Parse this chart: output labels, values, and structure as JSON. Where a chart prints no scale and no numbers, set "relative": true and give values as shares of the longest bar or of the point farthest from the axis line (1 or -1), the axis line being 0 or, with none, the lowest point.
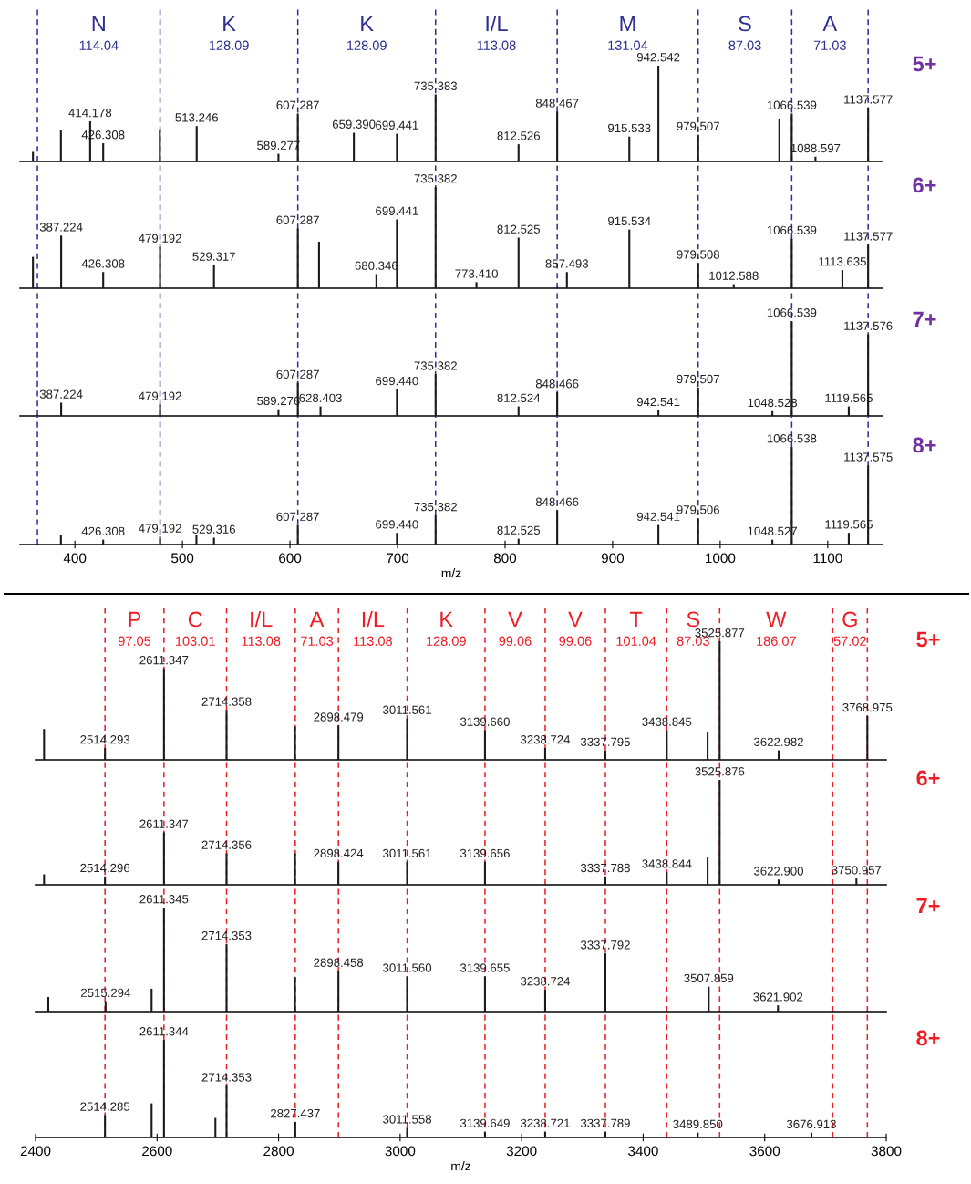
{
  "chart_data": [
    {
      "type": "bar",
      "relative": true,
      "color": "#1a1a1a",
      "xlim": [
        349,
        1151
      ],
      "xticks": [
        400,
        500,
        600,
        700,
        800,
        900,
        1000,
        1100
      ],
      "tick_labels": false,
      "x": [
        361,
        387,
        414.178,
        426.308,
        479,
        513.246,
        589.277,
        607.287,
        659.39,
        699.441,
        735.383,
        812.526,
        848.467,
        915.533,
        942.542,
        979.507,
        1055,
        1066.539,
        1088.597,
        1137.577
      ],
      "values": [
        0.1,
        0.33,
        0.42,
        0.19,
        0.33,
        0.37,
        0.08,
        0.5,
        0.3,
        0.29,
        0.7,
        0.18,
        0.52,
        0.26,
        1.0,
        0.28,
        0.44,
        0.5,
        0.05,
        0.56
      ],
      "annotations": [
        "5+",
        "N\n114.04",
        "K\n128.09",
        "K\n128.09",
        "I/L\n113.08",
        "M\n131.04",
        "S\n87.03",
        "A\n71.03",
        {
          "text": "414.178",
          "x": 414.178,
          "y": 0.42
        },
        {
          "text": "426.308",
          "x": 426.308,
          "y": 0.19
        },
        {
          "text": "513.246",
          "x": 513.246,
          "y": 0.37
        },
        {
          "text": "589.277",
          "x": 589.277,
          "y": 0.08
        },
        {
          "text": "607.287",
          "x": 607.287,
          "y": 0.5
        },
        {
          "text": "659.390",
          "x": 659.39,
          "y": 0.3
        },
        {
          "text": "699.441",
          "x": 699.441,
          "y": 0.29
        },
        {
          "text": "735.383",
          "x": 735.383,
          "y": 0.7
        },
        {
          "text": "812.526",
          "x": 812.526,
          "y": 0.18
        },
        {
          "text": "848.467",
          "x": 848.467,
          "y": 0.52
        },
        {
          "text": "915.533",
          "x": 915.533,
          "y": 0.26
        },
        {
          "text": "942.542",
          "x": 942.542,
          "y": 1.0
        },
        {
          "text": "979.507",
          "x": 979.507,
          "y": 0.28
        },
        {
          "text": "1066.539",
          "x": 1066.539,
          "y": 0.5
        },
        {
          "text": "1088.597",
          "x": 1088.597,
          "y": 0.05
        },
        {
          "text": "1137.577",
          "x": 1137.577,
          "y": 0.56
        }
      ],
      "ref_lines": [
        {
          "axis": "x",
          "value": 365.15,
          "color": "#2e3192",
          "line_style": "dashed"
        },
        {
          "axis": "x",
          "value": 479.19,
          "color": "#2e3192",
          "line_style": "dashed"
        },
        {
          "axis": "x",
          "value": 607.29,
          "color": "#2e3192",
          "line_style": "dashed"
        },
        {
          "axis": "x",
          "value": 735.38,
          "color": "#2e3192",
          "line_style": "dashed"
        },
        {
          "axis": "x",
          "value": 848.47,
          "color": "#2e3192",
          "line_style": "dashed"
        },
        {
          "axis": "x",
          "value": 979.51,
          "color": "#2e3192",
          "line_style": "dashed"
        },
        {
          "axis": "x",
          "value": 1066.54,
          "color": "#2e3192",
          "line_style": "dashed"
        },
        {
          "axis": "x",
          "value": 1137.58,
          "color": "#2e3192",
          "line_style": "dashed"
        }
      ]
    },
    {
      "type": "bar",
      "relative": true,
      "color": "#1a1a1a",
      "xlim": [
        349,
        1151
      ],
      "xticks": [
        400,
        500,
        600,
        700,
        800,
        900,
        1000,
        1100
      ],
      "tick_labels": false,
      "x": [
        361,
        387.224,
        426.308,
        479.192,
        529.317,
        607.287,
        627,
        680.346,
        699.441,
        735.382,
        773.41,
        812.525,
        857.493,
        915.534,
        979.508,
        1012.588,
        1066.539,
        1113.635,
        1137.577
      ],
      "values": [
        0.31,
        0.52,
        0.16,
        0.41,
        0.23,
        0.59,
        0.46,
        0.14,
        0.68,
        1.0,
        0.06,
        0.5,
        0.16,
        0.58,
        0.25,
        0.04,
        0.49,
        0.18,
        0.43
      ],
      "annotations": [
        "6+",
        {
          "text": "387.224",
          "x": 387.224,
          "y": 0.52
        },
        {
          "text": "426.308",
          "x": 426.308,
          "y": 0.16
        },
        {
          "text": "479.192",
          "x": 479.192,
          "y": 0.41
        },
        {
          "text": "529.317",
          "x": 529.317,
          "y": 0.23
        },
        {
          "text": "607.287",
          "x": 607.287,
          "y": 0.59
        },
        {
          "text": "680.346",
          "x": 680.346,
          "y": 0.14
        },
        {
          "text": "699.441",
          "x": 699.441,
          "y": 0.68
        },
        {
          "text": "735.382",
          "x": 735.382,
          "y": 1.0
        },
        {
          "text": "773.410",
          "x": 773.41,
          "y": 0.06
        },
        {
          "text": "812.525",
          "x": 812.525,
          "y": 0.5
        },
        {
          "text": "857.493",
          "x": 857.493,
          "y": 0.16
        },
        {
          "text": "915.534",
          "x": 915.534,
          "y": 0.58
        },
        {
          "text": "979.508",
          "x": 979.508,
          "y": 0.25
        },
        {
          "text": "1012.588",
          "x": 1012.588,
          "y": 0.04
        },
        {
          "text": "1066.539",
          "x": 1066.539,
          "y": 0.49
        },
        {
          "text": "1113.635",
          "x": 1113.635,
          "y": 0.18
        },
        {
          "text": "1137.577",
          "x": 1137.577,
          "y": 0.43
        }
      ],
      "ref_lines": [
        {
          "axis": "x",
          "value": 365.15,
          "color": "#2e3192",
          "line_style": "dashed"
        },
        {
          "axis": "x",
          "value": 479.19,
          "color": "#2e3192",
          "line_style": "dashed"
        },
        {
          "axis": "x",
          "value": 607.29,
          "color": "#2e3192",
          "line_style": "dashed"
        },
        {
          "axis": "x",
          "value": 735.38,
          "color": "#2e3192",
          "line_style": "dashed"
        },
        {
          "axis": "x",
          "value": 848.47,
          "color": "#2e3192",
          "line_style": "dashed"
        },
        {
          "axis": "x",
          "value": 979.51,
          "color": "#2e3192",
          "line_style": "dashed"
        },
        {
          "axis": "x",
          "value": 1066.54,
          "color": "#2e3192",
          "line_style": "dashed"
        },
        {
          "axis": "x",
          "value": 1137.58,
          "color": "#2e3192",
          "line_style": "dashed"
        }
      ]
    },
    {
      "type": "bar",
      "relative": true,
      "color": "#1a1a1a",
      "xlim": [
        349,
        1151
      ],
      "xticks": [
        400,
        500,
        600,
        700,
        800,
        900,
        1000,
        1100
      ],
      "tick_labels": false,
      "x": [
        387.224,
        479.192,
        589.276,
        607.287,
        628.403,
        699.44,
        735.382,
        812.524,
        848.466,
        942.541,
        979.507,
        1048.528,
        1066.539,
        1119.565,
        1137.576
      ],
      "values": [
        0.14,
        0.12,
        0.07,
        0.35,
        0.1,
        0.28,
        0.44,
        0.1,
        0.25,
        0.06,
        0.3,
        0.05,
        1.0,
        0.1,
        0.86
      ],
      "annotations": [
        "7+",
        {
          "text": "387.224",
          "x": 387.224,
          "y": 0.14
        },
        {
          "text": "479.192",
          "x": 479.192,
          "y": 0.12
        },
        {
          "text": "589.276",
          "x": 589.276,
          "y": 0.07
        },
        {
          "text": "607.287",
          "x": 607.287,
          "y": 0.35
        },
        {
          "text": "628.403",
          "x": 628.403,
          "y": 0.1
        },
        {
          "text": "699.440",
          "x": 699.44,
          "y": 0.28
        },
        {
          "text": "735.382",
          "x": 735.382,
          "y": 0.44
        },
        {
          "text": "812.524",
          "x": 812.524,
          "y": 0.1
        },
        {
          "text": "848.466",
          "x": 848.466,
          "y": 0.25
        },
        {
          "text": "942.541",
          "x": 942.541,
          "y": 0.06
        },
        {
          "text": "979.507",
          "x": 979.507,
          "y": 0.3
        },
        {
          "text": "1048.528",
          "x": 1048.528,
          "y": 0.05
        },
        {
          "text": "1066.539",
          "x": 1066.539,
          "y": 1.0
        },
        {
          "text": "1119.565",
          "x": 1119.565,
          "y": 0.1
        },
        {
          "text": "1137.576",
          "x": 1137.576,
          "y": 0.86
        }
      ],
      "ref_lines": [
        {
          "axis": "x",
          "value": 365.15,
          "color": "#2e3192",
          "line_style": "dashed"
        },
        {
          "axis": "x",
          "value": 479.19,
          "color": "#2e3192",
          "line_style": "dashed"
        },
        {
          "axis": "x",
          "value": 607.29,
          "color": "#2e3192",
          "line_style": "dashed"
        },
        {
          "axis": "x",
          "value": 735.38,
          "color": "#2e3192",
          "line_style": "dashed"
        },
        {
          "axis": "x",
          "value": 848.47,
          "color": "#2e3192",
          "line_style": "dashed"
        },
        {
          "axis": "x",
          "value": 979.51,
          "color": "#2e3192",
          "line_style": "dashed"
        },
        {
          "axis": "x",
          "value": 1066.54,
          "color": "#2e3192",
          "line_style": "dashed"
        },
        {
          "axis": "x",
          "value": 1137.58,
          "color": "#2e3192",
          "line_style": "dashed"
        }
      ]
    },
    {
      "type": "bar",
      "relative": true,
      "color": "#1a1a1a",
      "xlim": [
        349,
        1151
      ],
      "xticks": [
        400,
        500,
        600,
        700,
        800,
        900,
        1000,
        1100
      ],
      "tick_labels": "x",
      "xlabel": "m/z",
      "x": [
        387,
        426.308,
        479.192,
        513,
        529.316,
        607.287,
        699.44,
        735.382,
        812.525,
        848.466,
        942.541,
        979.506,
        1048.527,
        1066.538,
        1119.565,
        1137.575
      ],
      "values": [
        0.1,
        0.05,
        0.08,
        0.1,
        0.07,
        0.2,
        0.12,
        0.3,
        0.06,
        0.35,
        0.2,
        0.27,
        0.05,
        1.0,
        0.12,
        0.81
      ],
      "annotations": [
        "8+",
        {
          "text": "426.308",
          "x": 426.308,
          "y": 0.05
        },
        {
          "text": "479.192",
          "x": 479.192,
          "y": 0.08
        },
        {
          "text": "529.316",
          "x": 529.316,
          "y": 0.07
        },
        {
          "text": "607.287",
          "x": 607.287,
          "y": 0.2
        },
        {
          "text": "699.440",
          "x": 699.44,
          "y": 0.12
        },
        {
          "text": "735.382",
          "x": 735.382,
          "y": 0.3
        },
        {
          "text": "812.525",
          "x": 812.525,
          "y": 0.06
        },
        {
          "text": "848.466",
          "x": 848.466,
          "y": 0.35
        },
        {
          "text": "942.541",
          "x": 942.541,
          "y": 0.2
        },
        {
          "text": "979.506",
          "x": 979.506,
          "y": 0.27
        },
        {
          "text": "1048.527",
          "x": 1048.527,
          "y": 0.05
        },
        {
          "text": "1066.538",
          "x": 1066.538,
          "y": 1.0
        },
        {
          "text": "1119.565",
          "x": 1119.565,
          "y": 0.12
        },
        {
          "text": "1137.575",
          "x": 1137.575,
          "y": 0.81
        }
      ],
      "ref_lines": [
        {
          "axis": "x",
          "value": 365.15,
          "color": "#2e3192",
          "line_style": "dashed"
        },
        {
          "axis": "x",
          "value": 479.19,
          "color": "#2e3192",
          "line_style": "dashed"
        },
        {
          "axis": "x",
          "value": 607.29,
          "color": "#2e3192",
          "line_style": "dashed"
        },
        {
          "axis": "x",
          "value": 735.38,
          "color": "#2e3192",
          "line_style": "dashed"
        },
        {
          "axis": "x",
          "value": 848.47,
          "color": "#2e3192",
          "line_style": "dashed"
        },
        {
          "axis": "x",
          "value": 979.51,
          "color": "#2e3192",
          "line_style": "dashed"
        },
        {
          "axis": "x",
          "value": 1066.54,
          "color": "#2e3192",
          "line_style": "dashed"
        },
        {
          "axis": "x",
          "value": 1137.58,
          "color": "#2e3192",
          "line_style": "dashed"
        }
      ]
    },
    {
      "type": "bar",
      "relative": true,
      "color": "#1a1a1a",
      "xlim": [
        2400,
        3800
      ],
      "xticks": [
        2400,
        2600,
        2800,
        3000,
        3200,
        3400,
        3600,
        3800
      ],
      "tick_labels": false,
      "x": [
        2414,
        2514.293,
        2611.347,
        2714.358,
        2827,
        2898.479,
        3011.561,
        3139.66,
        3238.724,
        3337.795,
        3438.845,
        3506,
        3525.877,
        3622.982,
        3768.975
      ],
      "values": [
        0.26,
        0.1,
        0.77,
        0.42,
        0.28,
        0.29,
        0.35,
        0.25,
        0.1,
        0.08,
        0.25,
        0.23,
        1.0,
        0.08,
        0.37
      ],
      "annotations": [
        "5+",
        "P\n97.05",
        "C\n103.01",
        "I/L\n113.08",
        "A\n71.03",
        "I/L\n113.08",
        "K\n128.09",
        "V\n99.06",
        "V\n99.06",
        "T\n101.04",
        "S\n87.03",
        "W\n186.07",
        "G\n57.02",
        {
          "text": "2514.293",
          "x": 2514.293,
          "y": 0.1
        },
        {
          "text": "2611.347",
          "x": 2611.347,
          "y": 0.77
        },
        {
          "text": "2714.358",
          "x": 2714.358,
          "y": 0.42
        },
        {
          "text": "2898.479",
          "x": 2898.479,
          "y": 0.29
        },
        {
          "text": "3011.561",
          "x": 3011.561,
          "y": 0.35
        },
        {
          "text": "3139.660",
          "x": 3139.66,
          "y": 0.25
        },
        {
          "text": "3238.724",
          "x": 3238.724,
          "y": 0.1
        },
        {
          "text": "3337.795",
          "x": 3337.795,
          "y": 0.08
        },
        {
          "text": "3438.845",
          "x": 3438.845,
          "y": 0.25
        },
        {
          "text": "3525.877",
          "x": 3525.877,
          "y": 1.0
        },
        {
          "text": "3622.982",
          "x": 3622.982,
          "y": 0.08
        },
        {
          "text": "3768.975",
          "x": 3768.975,
          "y": 0.37
        }
      ],
      "ref_lines": [
        {
          "axis": "x",
          "value": 2514.29,
          "color": "#ee1c25",
          "line_style": "dashed"
        },
        {
          "axis": "x",
          "value": 2611.35,
          "color": "#ee1c25",
          "line_style": "dashed"
        },
        {
          "axis": "x",
          "value": 2714.36,
          "color": "#ee1c25",
          "line_style": "dashed"
        },
        {
          "axis": "x",
          "value": 2827.44,
          "color": "#ee1c25",
          "line_style": "dashed"
        },
        {
          "axis": "x",
          "value": 2898.48,
          "color": "#ee1c25",
          "line_style": "dashed"
        },
        {
          "axis": "x",
          "value": 3011.56,
          "color": "#ee1c25",
          "line_style": "dashed"
        },
        {
          "axis": "x",
          "value": 3139.66,
          "color": "#ee1c25",
          "line_style": "dashed"
        },
        {
          "axis": "x",
          "value": 3238.72,
          "color": "#ee1c25",
          "line_style": "dashed"
        },
        {
          "axis": "x",
          "value": 3337.79,
          "color": "#ee1c25",
          "line_style": "dashed"
        },
        {
          "axis": "x",
          "value": 3438.84,
          "color": "#ee1c25",
          "line_style": "dashed"
        },
        {
          "axis": "x",
          "value": 3525.88,
          "color": "#ee1c25",
          "line_style": "dashed"
        },
        {
          "axis": "x",
          "value": 3711.95,
          "color": "#ee1c25",
          "line_style": "dashed"
        },
        {
          "axis": "x",
          "value": 3768.97,
          "color": "#ee1c25",
          "line_style": "dashed"
        }
      ]
    },
    {
      "type": "bar",
      "relative": true,
      "color": "#1a1a1a",
      "xlim": [
        2400,
        3800
      ],
      "xticks": [
        2400,
        2600,
        2800,
        3000,
        3200,
        3400,
        3600,
        3800
      ],
      "tick_labels": false,
      "x": [
        2414,
        2514.296,
        2611.347,
        2714.356,
        2827,
        2898.424,
        3011.561,
        3139.656,
        3337.788,
        3438.844,
        3506,
        3525.876,
        3622.9,
        3750.957
      ],
      "values": [
        0.1,
        0.08,
        0.5,
        0.3,
        0.3,
        0.22,
        0.22,
        0.22,
        0.08,
        0.12,
        0.26,
        1.0,
        0.05,
        0.06
      ],
      "annotations": [
        "6+",
        {
          "text": "2514.296",
          "x": 2514.296,
          "y": 0.08
        },
        {
          "text": "2611.347",
          "x": 2611.347,
          "y": 0.5
        },
        {
          "text": "2714.356",
          "x": 2714.356,
          "y": 0.3
        },
        {
          "text": "2898.424",
          "x": 2898.424,
          "y": 0.22
        },
        {
          "text": "3011.561",
          "x": 3011.561,
          "y": 0.22
        },
        {
          "text": "3139.656",
          "x": 3139.656,
          "y": 0.22
        },
        {
          "text": "3337.788",
          "x": 3337.788,
          "y": 0.08
        },
        {
          "text": "3438.844",
          "x": 3438.844,
          "y": 0.12
        },
        {
          "text": "3525.876",
          "x": 3525.876,
          "y": 1.0
        },
        {
          "text": "3622.900",
          "x": 3622.9,
          "y": 0.05
        },
        {
          "text": "3750.957",
          "x": 3750.957,
          "y": 0.06
        }
      ],
      "ref_lines": [
        {
          "axis": "x",
          "value": 2514.29,
          "color": "#ee1c25",
          "line_style": "dashed"
        },
        {
          "axis": "x",
          "value": 2611.35,
          "color": "#ee1c25",
          "line_style": "dashed"
        },
        {
          "axis": "x",
          "value": 2714.36,
          "color": "#ee1c25",
          "line_style": "dashed"
        },
        {
          "axis": "x",
          "value": 2827.44,
          "color": "#ee1c25",
          "line_style": "dashed"
        },
        {
          "axis": "x",
          "value": 2898.48,
          "color": "#ee1c25",
          "line_style": "dashed"
        },
        {
          "axis": "x",
          "value": 3011.56,
          "color": "#ee1c25",
          "line_style": "dashed"
        },
        {
          "axis": "x",
          "value": 3139.66,
          "color": "#ee1c25",
          "line_style": "dashed"
        },
        {
          "axis": "x",
          "value": 3238.72,
          "color": "#ee1c25",
          "line_style": "dashed"
        },
        {
          "axis": "x",
          "value": 3337.79,
          "color": "#ee1c25",
          "line_style": "dashed"
        },
        {
          "axis": "x",
          "value": 3438.84,
          "color": "#ee1c25",
          "line_style": "dashed"
        },
        {
          "axis": "x",
          "value": 3525.88,
          "color": "#ee1c25",
          "line_style": "dashed"
        },
        {
          "axis": "x",
          "value": 3711.95,
          "color": "#ee1c25",
          "line_style": "dashed"
        },
        {
          "axis": "x",
          "value": 3768.97,
          "color": "#ee1c25",
          "line_style": "dashed"
        }
      ]
    },
    {
      "type": "bar",
      "relative": true,
      "color": "#1a1a1a",
      "xlim": [
        2400,
        3800
      ],
      "xticks": [
        2400,
        2600,
        2800,
        3000,
        3200,
        3400,
        3600,
        3800
      ],
      "tick_labels": false,
      "x": [
        2421,
        2515.294,
        2591,
        2611.345,
        2714.353,
        2827,
        2898.458,
        3011.56,
        3139.655,
        3238.724,
        3337.792,
        3507.859,
        3621.902
      ],
      "values": [
        0.14,
        0.1,
        0.22,
        1.0,
        0.65,
        0.33,
        0.39,
        0.34,
        0.34,
        0.21,
        0.56,
        0.24,
        0.06
      ],
      "annotations": [
        "7+",
        {
          "text": "2515.294",
          "x": 2515.294,
          "y": 0.1
        },
        {
          "text": "2611.345",
          "x": 2611.345,
          "y": 1.0
        },
        {
          "text": "2714.353",
          "x": 2714.353,
          "y": 0.65
        },
        {
          "text": "2898.458",
          "x": 2898.458,
          "y": 0.39
        },
        {
          "text": "3011.560",
          "x": 3011.56,
          "y": 0.34
        },
        {
          "text": "3139.655",
          "x": 3139.655,
          "y": 0.34
        },
        {
          "text": "3238.724",
          "x": 3238.724,
          "y": 0.21
        },
        {
          "text": "3337.792",
          "x": 3337.792,
          "y": 0.56
        },
        {
          "text": "3507.859",
          "x": 3507.859,
          "y": 0.24
        },
        {
          "text": "3621.902",
          "x": 3621.902,
          "y": 0.06
        }
      ],
      "ref_lines": [
        {
          "axis": "x",
          "value": 2514.29,
          "color": "#ee1c25",
          "line_style": "dashed"
        },
        {
          "axis": "x",
          "value": 2611.35,
          "color": "#ee1c25",
          "line_style": "dashed"
        },
        {
          "axis": "x",
          "value": 2714.36,
          "color": "#ee1c25",
          "line_style": "dashed"
        },
        {
          "axis": "x",
          "value": 2827.44,
          "color": "#ee1c25",
          "line_style": "dashed"
        },
        {
          "axis": "x",
          "value": 2898.48,
          "color": "#ee1c25",
          "line_style": "dashed"
        },
        {
          "axis": "x",
          "value": 3011.56,
          "color": "#ee1c25",
          "line_style": "dashed"
        },
        {
          "axis": "x",
          "value": 3139.66,
          "color": "#ee1c25",
          "line_style": "dashed"
        },
        {
          "axis": "x",
          "value": 3238.72,
          "color": "#ee1c25",
          "line_style": "dashed"
        },
        {
          "axis": "x",
          "value": 3337.79,
          "color": "#ee1c25",
          "line_style": "dashed"
        },
        {
          "axis": "x",
          "value": 3438.84,
          "color": "#ee1c25",
          "line_style": "dashed"
        },
        {
          "axis": "x",
          "value": 3525.88,
          "color": "#ee1c25",
          "line_style": "dashed"
        },
        {
          "axis": "x",
          "value": 3711.95,
          "color": "#ee1c25",
          "line_style": "dashed"
        },
        {
          "axis": "x",
          "value": 3768.97,
          "color": "#ee1c25",
          "line_style": "dashed"
        }
      ]
    },
    {
      "type": "bar",
      "relative": true,
      "color": "#1a1a1a",
      "xlim": [
        2400,
        3800
      ],
      "xticks": [
        2400,
        2600,
        2800,
        3000,
        3200,
        3400,
        3600,
        3800
      ],
      "tick_labels": "x",
      "xlabel": "m/z",
      "x": [
        2514.285,
        2591,
        2611.344,
        2696,
        2714.353,
        2827.437,
        3011.558,
        3139.649,
        3238.721,
        3337.789,
        3489.85,
        3676.913
      ],
      "values": [
        0.23,
        0.35,
        1.0,
        0.2,
        0.53,
        0.16,
        0.1,
        0.06,
        0.06,
        0.06,
        0.05,
        0.05
      ],
      "annotations": [
        "8+",
        {
          "text": "2514.285",
          "x": 2514.285,
          "y": 0.23
        },
        {
          "text": "2611.344",
          "x": 2611.344,
          "y": 1.0
        },
        {
          "text": "2714.353",
          "x": 2714.353,
          "y": 0.53
        },
        {
          "text": "2827.437",
          "x": 2827.437,
          "y": 0.16
        },
        {
          "text": "3011.558",
          "x": 3011.558,
          "y": 0.1
        },
        {
          "text": "3139.649",
          "x": 3139.649,
          "y": 0.06
        },
        {
          "text": "3238.721",
          "x": 3238.721,
          "y": 0.06
        },
        {
          "text": "3337.789",
          "x": 3337.789,
          "y": 0.06
        },
        {
          "text": "3489.850",
          "x": 3489.85,
          "y": 0.05
        },
        {
          "text": "3676.913",
          "x": 3676.913,
          "y": 0.05
        }
      ],
      "ref_lines": [
        {
          "axis": "x",
          "value": 2514.29,
          "color": "#ee1c25",
          "line_style": "dashed"
        },
        {
          "axis": "x",
          "value": 2611.35,
          "color": "#ee1c25",
          "line_style": "dashed"
        },
        {
          "axis": "x",
          "value": 2714.36,
          "color": "#ee1c25",
          "line_style": "dashed"
        },
        {
          "axis": "x",
          "value": 2827.44,
          "color": "#ee1c25",
          "line_style": "dashed"
        },
        {
          "axis": "x",
          "value": 2898.48,
          "color": "#ee1c25",
          "line_style": "dashed"
        },
        {
          "axis": "x",
          "value": 3011.56,
          "color": "#ee1c25",
          "line_style": "dashed"
        },
        {
          "axis": "x",
          "value": 3139.66,
          "color": "#ee1c25",
          "line_style": "dashed"
        },
        {
          "axis": "x",
          "value": 3238.72,
          "color": "#ee1c25",
          "line_style": "dashed"
        },
        {
          "axis": "x",
          "value": 3337.79,
          "color": "#ee1c25",
          "line_style": "dashed"
        },
        {
          "axis": "x",
          "value": 3438.84,
          "color": "#ee1c25",
          "line_style": "dashed"
        },
        {
          "axis": "x",
          "value": 3525.88,
          "color": "#ee1c25",
          "line_style": "dashed"
        },
        {
          "axis": "x",
          "value": 3711.95,
          "color": "#ee1c25",
          "line_style": "dashed"
        },
        {
          "axis": "x",
          "value": 3768.97,
          "color": "#ee1c25",
          "line_style": "dashed"
        }
      ]
    }
  ]
}
